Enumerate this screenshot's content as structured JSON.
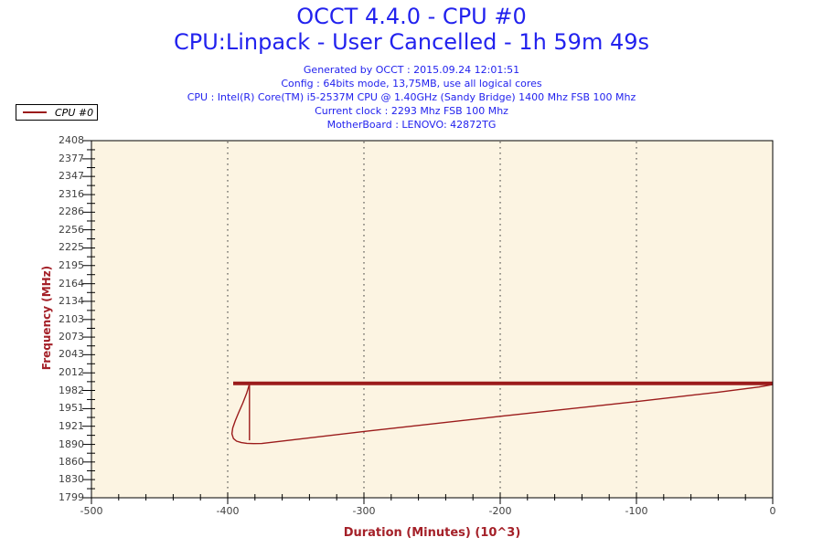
{
  "header": {
    "title": "OCCT 4.4.0 - CPU #0",
    "subtitle": "CPU:Linpack - User Cancelled - 1h 59m 49s",
    "title_color": "#2222EE",
    "info_lines": [
      "Generated by OCCT : 2015.09.24 12:01:51",
      "Config : 64bits mode, 13,75MB, use all logical cores",
      "CPU : Intel(R) Core(TM) i5-2537M CPU @ 1.40GHz (Sandy Bridge) 1400 Mhz FSB 100 Mhz",
      "Current clock : 2293 Mhz FSB 100 Mhz",
      "MotherBoard : LENOVO: 42872TG"
    ]
  },
  "legend": {
    "label": "CPU #0",
    "line_color": "#9B1B1B"
  },
  "chart_data": {
    "type": "line",
    "xlabel": "Duration (Minutes) (10^3)",
    "ylabel": "Frequency (MHz)",
    "xlim": [
      -500,
      0
    ],
    "ylim": [
      1799,
      2408
    ],
    "x_ticks": [
      -500,
      -400,
      -300,
      -200,
      -100,
      0
    ],
    "x_minor_subdivisions": 5,
    "y_ticks": [
      2408,
      2377,
      2347,
      2316,
      2286,
      2256,
      2225,
      2195,
      2164,
      2134,
      2103,
      2073,
      2043,
      2012,
      1982,
      1951,
      1921,
      1890,
      1860,
      1830,
      1799
    ],
    "grid": "vertical-dotted",
    "plot_bg": "#FCF4E2",
    "series_color": "#9B1B1B",
    "axis_label_color": "#A42028",
    "tick_label_color": "#3F3F3F",
    "series": [
      {
        "name": "steady-line",
        "width": 4,
        "points": [
          [
            -396,
            1994
          ],
          [
            0,
            1994
          ]
        ]
      },
      {
        "name": "drop-line",
        "width": 1.4,
        "points": [
          [
            -384,
            1993
          ],
          [
            -384,
            1897
          ]
        ]
      },
      {
        "name": "loop-recovery",
        "width": 1.4,
        "points": [
          [
            -384,
            1993
          ],
          [
            -386,
            1978
          ],
          [
            -389,
            1960
          ],
          [
            -392,
            1944
          ],
          [
            -394.5,
            1930
          ],
          [
            -396.3,
            1918
          ],
          [
            -396.9,
            1908
          ],
          [
            -395.8,
            1900
          ],
          [
            -393.5,
            1895.5
          ],
          [
            -390,
            1893
          ],
          [
            -386,
            1891.8
          ],
          [
            -381,
            1891.3
          ],
          [
            -375,
            1891.5
          ],
          [
            -300,
            1912
          ],
          [
            -200,
            1938
          ],
          [
            -100,
            1963
          ],
          [
            -40,
            1979
          ],
          [
            -10,
            1988
          ],
          [
            0,
            1992
          ]
        ]
      }
    ]
  }
}
